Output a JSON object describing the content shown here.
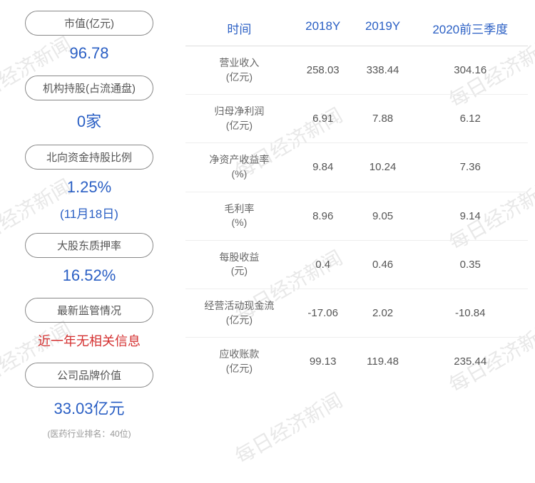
{
  "watermark_text": "每日经济新闻",
  "watermark_color": "#e8e8e8",
  "left_metrics": [
    {
      "label": "市值(亿元)",
      "value": "96.78",
      "sub": null,
      "note": null,
      "color": "blue"
    },
    {
      "label": "机构持股(占流通盘)",
      "value": "0家",
      "sub": null,
      "note": null,
      "color": "blue"
    },
    {
      "label": "北向资金持股比例",
      "value": "1.25%",
      "sub": "(11月18日)",
      "note": null,
      "color": "blue"
    },
    {
      "label": "大股东质押率",
      "value": "16.52%",
      "sub": null,
      "note": null,
      "color": "blue"
    },
    {
      "label": "最新监管情况",
      "value": "近一年无相关信息",
      "sub": null,
      "note": null,
      "color": "red"
    },
    {
      "label": "公司品牌价值",
      "value": "33.03亿元",
      "sub": null,
      "note": "(医药行业排名：40位)",
      "color": "blue"
    }
  ],
  "table": {
    "columns": [
      "时间",
      "2018Y",
      "2019Y",
      "2020前三季度"
    ],
    "rows": [
      {
        "label": "营业收入",
        "unit": "(亿元)",
        "values": [
          "258.03",
          "338.44",
          "304.16"
        ]
      },
      {
        "label": "归母净利润",
        "unit": "(亿元)",
        "values": [
          "6.91",
          "7.88",
          "6.12"
        ]
      },
      {
        "label": "净资产收益率",
        "unit": "(%)",
        "values": [
          "9.84",
          "10.24",
          "7.36"
        ]
      },
      {
        "label": "毛利率",
        "unit": "(%)",
        "values": [
          "8.96",
          "9.05",
          "9.14"
        ]
      },
      {
        "label": "每股收益",
        "unit": "(元)",
        "values": [
          "0.4",
          "0.46",
          "0.35"
        ]
      },
      {
        "label": "经营活动现金流",
        "unit": "(亿元)",
        "values": [
          "-17.06",
          "2.02",
          "-10.84"
        ]
      },
      {
        "label": "应收账款",
        "unit": "(亿元)",
        "values": [
          "99.13",
          "119.48",
          "235.44"
        ]
      }
    ]
  },
  "colors": {
    "header_blue": "#2a5fc4",
    "text_gray": "#555555",
    "border_gray": "#dddddd",
    "red": "#d43030"
  }
}
